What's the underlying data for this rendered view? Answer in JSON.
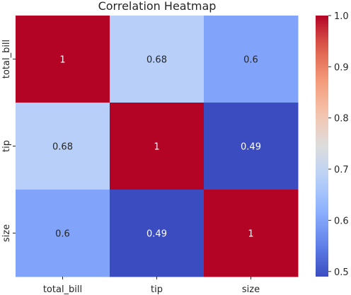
{
  "chart_data": {
    "type": "heatmap",
    "title": "Correlation Heatmap",
    "xlabel": "",
    "ylabel": "",
    "x_categories": [
      "total_bill",
      "tip",
      "size"
    ],
    "y_categories": [
      "total_bill",
      "tip",
      "size"
    ],
    "values": [
      [
        1.0,
        0.68,
        0.6
      ],
      [
        0.68,
        1.0,
        0.49
      ],
      [
        0.6,
        0.49,
        1.0
      ]
    ],
    "cell_labels": [
      [
        "1",
        "0.68",
        "0.6"
      ],
      [
        "0.68",
        "1",
        "0.49"
      ],
      [
        "0.6",
        "0.49",
        "1"
      ]
    ],
    "colormap": "coolwarm",
    "vmin": 0.49,
    "vmax": 1.0,
    "colorbar": {
      "ticks": [
        0.5,
        0.6,
        0.7,
        0.8,
        0.9,
        1.0
      ],
      "tick_labels": [
        "0.5",
        "0.6",
        "0.7",
        "0.8",
        "0.9",
        "1.0"
      ]
    },
    "grid": false,
    "legend": "colorbar-right"
  }
}
